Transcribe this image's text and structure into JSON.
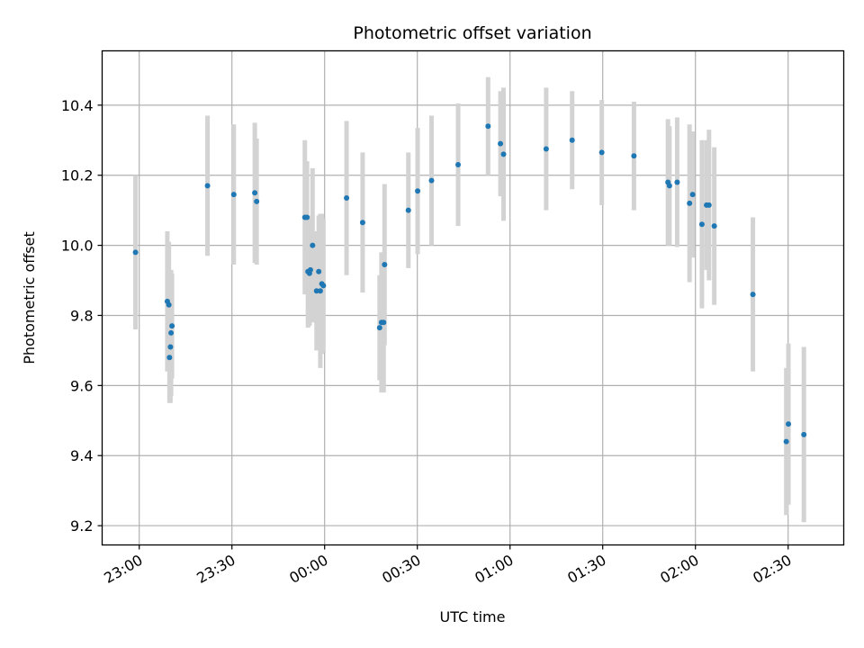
{
  "chart_data": {
    "type": "scatter",
    "title": "Photometric offset variation",
    "xlabel": "UTC time",
    "ylabel": "Photometric offset",
    "x_unit": "HH:MM UTC",
    "xlim": [
      "22:48",
      "02:48"
    ],
    "ylim": [
      9.145,
      10.555
    ],
    "x_ticks": [
      "23:00",
      "23:30",
      "00:00",
      "00:30",
      "01:00",
      "01:30",
      "02:00",
      "02:30"
    ],
    "y_ticks": [
      "9.2",
      "9.4",
      "9.6",
      "9.8",
      "10.0",
      "10.2",
      "10.4"
    ],
    "grid": true,
    "colors": {
      "point": "#1f77b4",
      "errorbar": "#d3d3d3",
      "grid": "#b0b0b0"
    },
    "points": [
      {
        "x": "22:58:48",
        "y": 9.98,
        "err": 0.22
      },
      {
        "x": "23:09:06",
        "y": 9.84,
        "err": 0.2
      },
      {
        "x": "23:09:36",
        "y": 9.83,
        "err": 0.18
      },
      {
        "x": "23:09:48",
        "y": 9.68,
        "err": 0.13
      },
      {
        "x": "23:10:06",
        "y": 9.71,
        "err": 0.16
      },
      {
        "x": "23:10:18",
        "y": 9.75,
        "err": 0.18
      },
      {
        "x": "23:10:36",
        "y": 9.77,
        "err": 0.15
      },
      {
        "x": "23:22:06",
        "y": 10.17,
        "err": 0.2
      },
      {
        "x": "23:30:36",
        "y": 10.145,
        "err": 0.2
      },
      {
        "x": "23:37:24",
        "y": 10.15,
        "err": 0.2
      },
      {
        "x": "23:38:00",
        "y": 10.125,
        "err": 0.18
      },
      {
        "x": "23:53:36",
        "y": 10.08,
        "err": 0.22
      },
      {
        "x": "23:54:18",
        "y": 10.08,
        "err": 0.16
      },
      {
        "x": "23:54:36",
        "y": 9.925,
        "err": 0.16
      },
      {
        "x": "23:55:06",
        "y": 9.92,
        "err": 0.15
      },
      {
        "x": "23:55:24",
        "y": 9.93,
        "err": 0.15
      },
      {
        "x": "23:56:06",
        "y": 10.0,
        "err": 0.22
      },
      {
        "x": "23:57:24",
        "y": 9.87,
        "err": 0.17
      },
      {
        "x": "23:58:06",
        "y": 9.925,
        "err": 0.16
      },
      {
        "x": "23:58:36",
        "y": 9.87,
        "err": 0.22
      },
      {
        "x": "23:59:06",
        "y": 9.89,
        "err": 0.2
      },
      {
        "x": "23:59:36",
        "y": 9.885,
        "err": 0.19
      },
      {
        "x": "00:07:06",
        "y": 10.135,
        "err": 0.22
      },
      {
        "x": "00:12:18",
        "y": 10.065,
        "err": 0.2
      },
      {
        "x": "00:17:48",
        "y": 9.765,
        "err": 0.15
      },
      {
        "x": "00:18:24",
        "y": 9.78,
        "err": 0.2
      },
      {
        "x": "00:19:06",
        "y": 9.78,
        "err": 0.2
      },
      {
        "x": "00:19:24",
        "y": 9.945,
        "err": 0.23
      },
      {
        "x": "00:27:06",
        "y": 10.1,
        "err": 0.165
      },
      {
        "x": "00:30:06",
        "y": 10.155,
        "err": 0.18
      },
      {
        "x": "00:34:36",
        "y": 10.185,
        "err": 0.185
      },
      {
        "x": "00:43:12",
        "y": 10.23,
        "err": 0.175
      },
      {
        "x": "00:52:54",
        "y": 10.34,
        "err": 0.14
      },
      {
        "x": "00:56:54",
        "y": 10.29,
        "err": 0.15
      },
      {
        "x": "00:57:54",
        "y": 10.26,
        "err": 0.19
      },
      {
        "x": "01:11:42",
        "y": 10.275,
        "err": 0.175
      },
      {
        "x": "01:20:06",
        "y": 10.3,
        "err": 0.14
      },
      {
        "x": "01:29:42",
        "y": 10.265,
        "err": 0.15
      },
      {
        "x": "01:40:06",
        "y": 10.255,
        "err": 0.155
      },
      {
        "x": "01:51:06",
        "y": 10.18,
        "err": 0.18
      },
      {
        "x": "01:51:36",
        "y": 10.17,
        "err": 0.17
      },
      {
        "x": "01:54:06",
        "y": 10.18,
        "err": 0.185
      },
      {
        "x": "01:58:06",
        "y": 10.12,
        "err": 0.225
      },
      {
        "x": "01:59:06",
        "y": 10.145,
        "err": 0.18
      },
      {
        "x": "02:02:06",
        "y": 10.06,
        "err": 0.24
      },
      {
        "x": "02:03:36",
        "y": 10.115,
        "err": 0.185
      },
      {
        "x": "02:04:24",
        "y": 10.115,
        "err": 0.215
      },
      {
        "x": "02:06:06",
        "y": 10.055,
        "err": 0.225
      },
      {
        "x": "02:18:36",
        "y": 9.86,
        "err": 0.22
      },
      {
        "x": "02:29:24",
        "y": 9.44,
        "err": 0.21
      },
      {
        "x": "02:30:06",
        "y": 9.49,
        "err": 0.23
      },
      {
        "x": "02:35:06",
        "y": 9.46,
        "err": 0.25
      }
    ]
  }
}
